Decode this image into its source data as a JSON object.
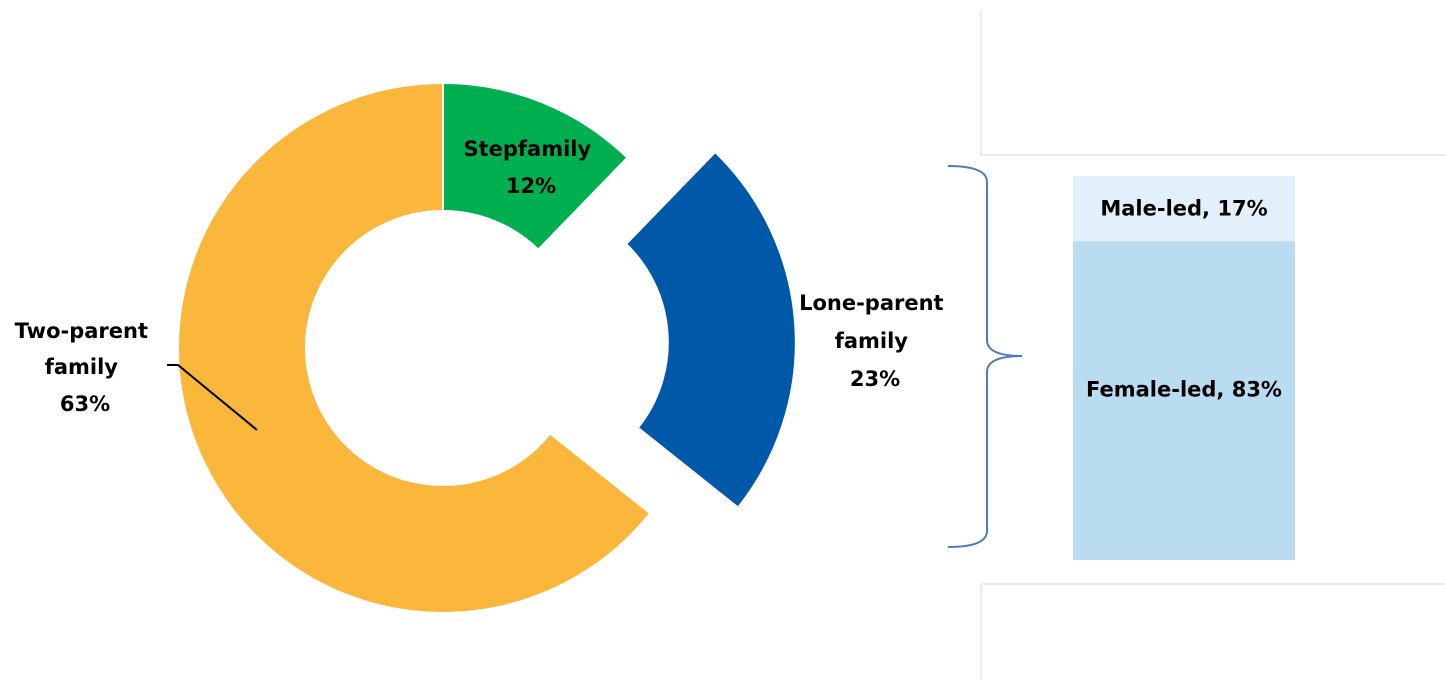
{
  "chart_data": [
    {
      "type": "pie",
      "variant": "donut",
      "slices": [
        {
          "id": "stepfamily",
          "name_lines": [
            "Stepfamily"
          ],
          "value": 12,
          "value_label": "12%",
          "color": "#00b050",
          "exploded": false
        },
        {
          "id": "lone-parent",
          "name_lines": [
            "Lone-parent",
            "family"
          ],
          "value": 23,
          "value_label": "23%",
          "color": "#0058a8",
          "exploded": true
        },
        {
          "id": "two-parent",
          "name_lines": [
            "Two-parent",
            "family"
          ],
          "value": 63,
          "value_label": "63%",
          "color": "#fab73c",
          "exploded": false
        }
      ]
    },
    {
      "type": "bar",
      "variant": "100% stacked column",
      "breakdown_of": "lone-parent",
      "segments": [
        {
          "id": "male-led",
          "label": "Male-led, 17%",
          "value": 17,
          "color": "#e1f0fa"
        },
        {
          "id": "female-led",
          "label": "Female-led, 83%",
          "value": 83,
          "color": "#b9dcf1"
        }
      ]
    }
  ],
  "colors": {
    "bracket": "#4a7ebb",
    "leader_line": "#000000",
    "panel_border": "#d9d9d9"
  }
}
